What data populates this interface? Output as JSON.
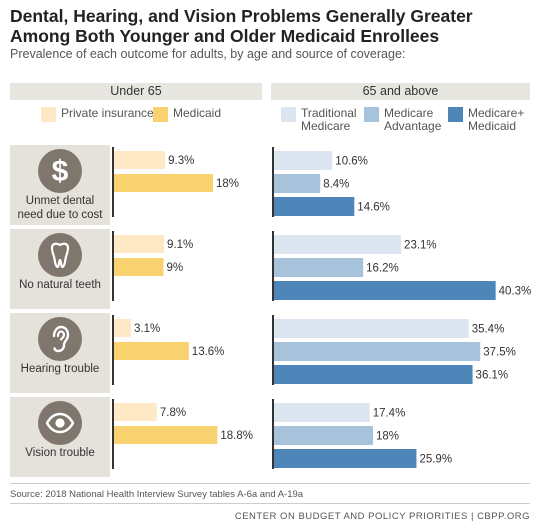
{
  "title": "Dental, Hearing, and Vision Problems Generally Greater Among Both Younger and Older Medicaid Enrollees",
  "subtitle": "Prevalence of each outcome for adults, by age and source of coverage:",
  "groups": [
    "Under 65",
    "65 and above"
  ],
  "legend": {
    "under65": [
      {
        "name": "Private insurance",
        "color": "#fde9c6"
      },
      {
        "name": "Medicaid",
        "color": "#f9d270"
      }
    ],
    "over65": [
      {
        "name": "Traditional Medicare",
        "color": "#dbe6f0"
      },
      {
        "name": "Medicare Advantage",
        "color": "#a7c3dc"
      },
      {
        "name": "Medicare+ Medicaid",
        "color": "#4f86ba"
      }
    ]
  },
  "categories": [
    {
      "label": "Unmet dental need due to cost",
      "icon": "dollar-icon"
    },
    {
      "label": "No natural teeth",
      "icon": "tooth-icon"
    },
    {
      "label": "Hearing trouble",
      "icon": "ear-icon"
    },
    {
      "label": "Vision trouble",
      "icon": "eye-icon"
    }
  ],
  "chart_data": {
    "type": "bar",
    "orientation": "horizontal",
    "categories": [
      "Unmet dental need due to cost",
      "No natural teeth",
      "Hearing trouble",
      "Vision trouble"
    ],
    "series": [
      {
        "name": "Private insurance",
        "group": "Under 65",
        "values": [
          9.3,
          9.1,
          3.1,
          7.8
        ],
        "labels": [
          "9.3%",
          "9.1%",
          "3.1%",
          "7.8%"
        ],
        "color": "#fde9c6"
      },
      {
        "name": "Medicaid",
        "group": "Under 65",
        "values": [
          18,
          9,
          13.6,
          18.8
        ],
        "labels": [
          "18%",
          "9%",
          "13.6%",
          "18.8%"
        ],
        "color": "#f9d270"
      },
      {
        "name": "Traditional Medicare",
        "group": "65 and above",
        "values": [
          10.6,
          23.1,
          35.4,
          17.4
        ],
        "labels": [
          "10.6%",
          "23.1%",
          "35.4%",
          "17.4%"
        ],
        "color": "#dbe6f0"
      },
      {
        "name": "Medicare Advantage",
        "group": "65 and above",
        "values": [
          8.4,
          16.2,
          37.5,
          18
        ],
        "labels": [
          "8.4%",
          "16.2%",
          "37.5%",
          "18%"
        ],
        "color": "#a7c3dc"
      },
      {
        "name": "Medicare+ Medicaid",
        "group": "65 and above",
        "values": [
          14.6,
          40.3,
          36.1,
          25.9
        ],
        "labels": [
          "14.6%",
          "40.3%",
          "36.1%",
          "25.9%"
        ],
        "color": "#4f86ba"
      }
    ],
    "grid": false,
    "legend_placement": "top"
  },
  "source": "Source: 2018 National Health Interview Survey tables A-6a and A-19a",
  "credit": "CENTER ON BUDGET AND POLICY PRIORITIES | CBPP.ORG"
}
